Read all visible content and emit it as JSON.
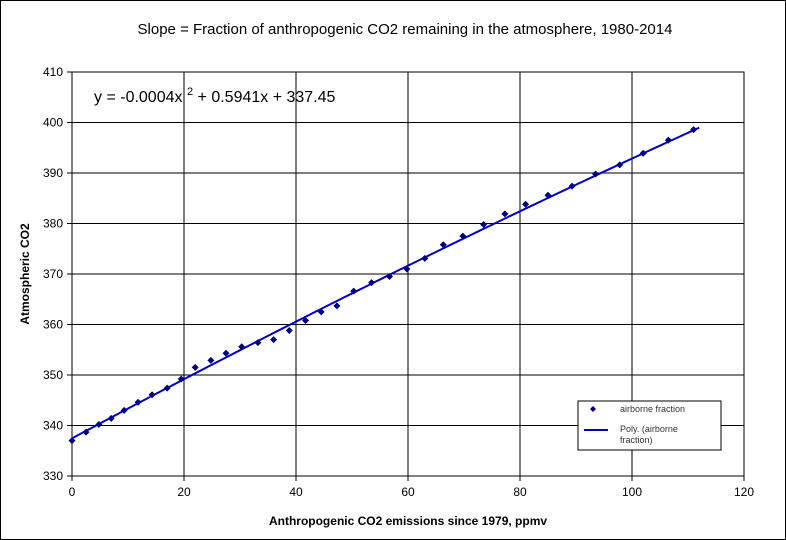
{
  "chart_data": {
    "type": "scatter",
    "title": "Slope = Fraction of anthropogenic CO2 remaining in the atmosphere, 1980-2014",
    "xlabel": "Anthropogenic CO2 emissions since 1979, ppmv",
    "ylabel": "Atmospheric CO2",
    "xlim": [
      0,
      120
    ],
    "ylim": [
      330,
      410
    ],
    "x_ticks": [
      "0",
      "20",
      "40",
      "60",
      "80",
      "100",
      "120"
    ],
    "y_ticks": [
      "330",
      "340",
      "350",
      "360",
      "370",
      "380",
      "390",
      "400",
      "410"
    ],
    "grid": true,
    "legend_position": "bottom-right",
    "equation": {
      "prefix": "y = -0.0004x",
      "superscript": "2",
      "suffix": " + 0.5941x + 337.45"
    },
    "trendline": {
      "a": -0.0004,
      "b": 0.5941,
      "c": 337.45,
      "x_range": [
        0,
        112
      ]
    },
    "series": [
      {
        "name": "airborne fraction",
        "marker": "diamond",
        "color": "#000080",
        "x": [
          0,
          2.5,
          4.8,
          7.0,
          9.3,
          11.8,
          14.3,
          17.0,
          19.5,
          22.0,
          24.8,
          27.5,
          30.3,
          33.2,
          36.0,
          38.8,
          41.7,
          44.5,
          47.3,
          50.3,
          53.5,
          56.7,
          59.8,
          63.0,
          66.3,
          69.8,
          73.5,
          77.3,
          81.0,
          85.0,
          89.3,
          93.5,
          97.8,
          102.0,
          106.5,
          111.0
        ],
        "y": [
          337.0,
          338.7,
          340.2,
          341.4,
          343.0,
          344.6,
          346.1,
          347.4,
          349.2,
          351.5,
          352.9,
          354.3,
          355.6,
          356.4,
          357.0,
          358.8,
          360.8,
          362.5,
          363.7,
          366.6,
          368.3,
          369.5,
          371.0,
          373.1,
          375.8,
          377.5,
          379.8,
          381.9,
          383.8,
          385.6,
          387.4,
          389.8,
          391.6,
          393.9,
          396.5,
          398.6
        ]
      },
      {
        "name": "Poly. (airborne fraction)",
        "name_lines": [
          "Poly. (airborne",
          "fraction)"
        ],
        "color": "#0000cc"
      }
    ]
  }
}
